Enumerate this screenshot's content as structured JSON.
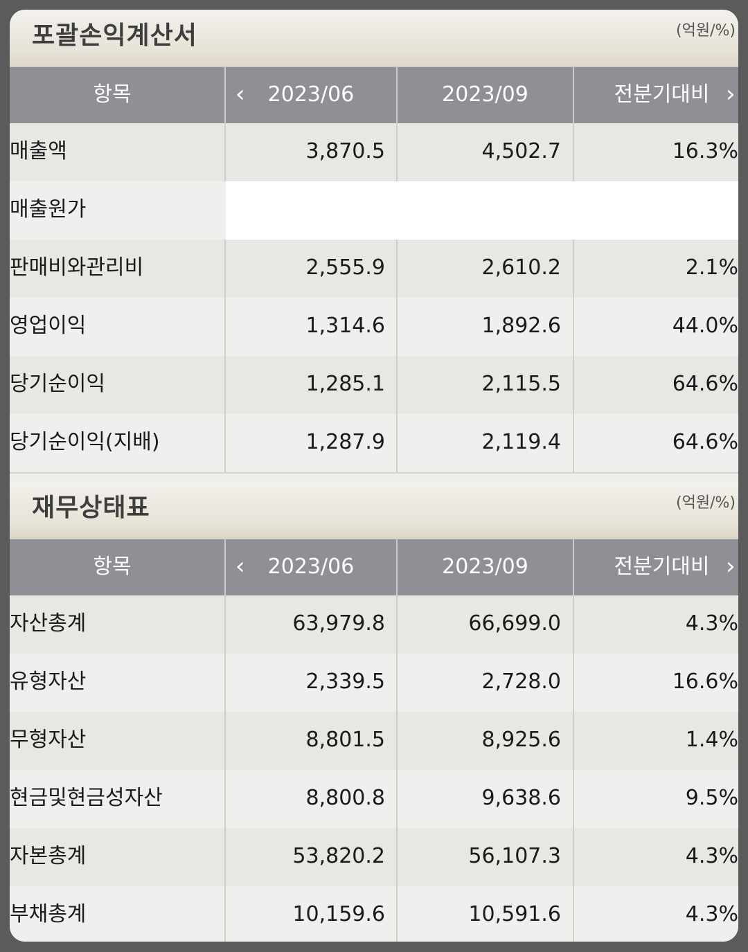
{
  "sections": [
    {
      "title": "포괄손익계산서",
      "unit": "(억원/%)",
      "header": {
        "item": "항목",
        "prev_icon": "chevron-left-icon",
        "col1": "2023/06",
        "col2": "2023/09",
        "col3": "전분기대비",
        "next_icon": "chevron-right-icon"
      },
      "rows": [
        {
          "label": "매출액",
          "v1": "3,870.5",
          "v2": "4,502.7",
          "v3": "16.3%"
        },
        {
          "label": "매출원가",
          "v1": "",
          "v2": "",
          "v3": ""
        },
        {
          "label": "판매비와관리비",
          "v1": "2,555.9",
          "v2": "2,610.2",
          "v3": "2.1%"
        },
        {
          "label": "영업이익",
          "v1": "1,314.6",
          "v2": "1,892.6",
          "v3": "44.0%"
        },
        {
          "label": "당기순이익",
          "v1": "1,285.1",
          "v2": "2,115.5",
          "v3": "64.6%"
        },
        {
          "label": "당기순이익(지배)",
          "v1": "1,287.9",
          "v2": "2,119.4",
          "v3": "64.6%"
        }
      ]
    },
    {
      "title": "재무상태표",
      "unit": "(억원/%)",
      "header": {
        "item": "항목",
        "prev_icon": "chevron-left-icon",
        "col1": "2023/06",
        "col2": "2023/09",
        "col3": "전분기대비",
        "next_icon": "chevron-right-icon"
      },
      "rows": [
        {
          "label": "자산총계",
          "v1": "63,979.8",
          "v2": "66,699.0",
          "v3": "4.3%"
        },
        {
          "label": "유형자산",
          "v1": "2,339.5",
          "v2": "2,728.0",
          "v3": "16.6%"
        },
        {
          "label": "무형자산",
          "v1": "8,801.5",
          "v2": "8,925.6",
          "v3": "1.4%"
        },
        {
          "label": "현금및현금성자산",
          "v1": "8,800.8",
          "v2": "9,638.6",
          "v3": "9.5%"
        },
        {
          "label": "자본총계",
          "v1": "53,820.2",
          "v2": "56,107.3",
          "v3": "4.3%"
        },
        {
          "label": "부채총계",
          "v1": "10,159.6",
          "v2": "10,591.6",
          "v3": "4.3%"
        }
      ]
    }
  ]
}
